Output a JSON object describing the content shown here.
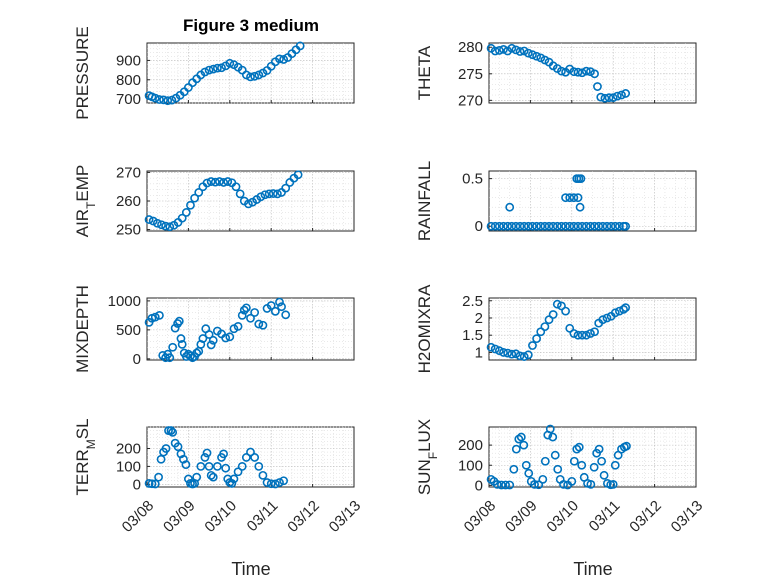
{
  "figure_title": "Figure 3 medium",
  "marker_color": "#0072BD",
  "chart_data": [
    {
      "type": "scatter",
      "title": "Figure 3 medium",
      "ylabel": "PRESSURE",
      "ylim": [
        680,
        990
      ],
      "yticks": [
        700,
        800,
        900
      ],
      "xlim": [
        0,
        5
      ],
      "points": [
        [
          0.05,
          718
        ],
        [
          0.12,
          712
        ],
        [
          0.2,
          705
        ],
        [
          0.3,
          698
        ],
        [
          0.4,
          696
        ],
        [
          0.5,
          692
        ],
        [
          0.6,
          695
        ],
        [
          0.7,
          705
        ],
        [
          0.8,
          720
        ],
        [
          0.9,
          738
        ],
        [
          1.0,
          760
        ],
        [
          1.1,
          785
        ],
        [
          1.2,
          805
        ],
        [
          1.3,
          825
        ],
        [
          1.4,
          840
        ],
        [
          1.5,
          850
        ],
        [
          1.6,
          855
        ],
        [
          1.7,
          860
        ],
        [
          1.8,
          862
        ],
        [
          1.9,
          872
        ],
        [
          2.0,
          885
        ],
        [
          2.1,
          878
        ],
        [
          2.2,
          865
        ],
        [
          2.3,
          850
        ],
        [
          2.4,
          825
        ],
        [
          2.5,
          815
        ],
        [
          2.6,
          818
        ],
        [
          2.7,
          825
        ],
        [
          2.8,
          835
        ],
        [
          2.9,
          848
        ],
        [
          3.0,
          870
        ],
        [
          3.1,
          893
        ],
        [
          3.2,
          908
        ],
        [
          3.3,
          905
        ],
        [
          3.4,
          915
        ],
        [
          3.5,
          935
        ],
        [
          3.6,
          955
        ],
        [
          3.7,
          975
        ]
      ]
    },
    {
      "type": "scatter",
      "ylabel": "THETA",
      "ylim": [
        269.5,
        280.8
      ],
      "yticks": [
        270,
        275,
        280
      ],
      "xlim": [
        0,
        5
      ],
      "points": [
        [
          0.05,
          279.8
        ],
        [
          0.15,
          279.3
        ],
        [
          0.25,
          279.4
        ],
        [
          0.35,
          279.6
        ],
        [
          0.45,
          279.3
        ],
        [
          0.55,
          279.8
        ],
        [
          0.65,
          279.5
        ],
        [
          0.75,
          279.2
        ],
        [
          0.85,
          279.3
        ],
        [
          0.95,
          278.9
        ],
        [
          1.05,
          278.6
        ],
        [
          1.15,
          278.3
        ],
        [
          1.25,
          278.0
        ],
        [
          1.35,
          277.6
        ],
        [
          1.45,
          277.2
        ],
        [
          1.55,
          276.5
        ],
        [
          1.65,
          276.0
        ],
        [
          1.75,
          275.5
        ],
        [
          1.85,
          275.3
        ],
        [
          1.95,
          275.9
        ],
        [
          2.05,
          275.4
        ],
        [
          2.15,
          275.3
        ],
        [
          2.25,
          275.2
        ],
        [
          2.35,
          275.5
        ],
        [
          2.45,
          275.4
        ],
        [
          2.55,
          275.0
        ],
        [
          2.62,
          272.6
        ],
        [
          2.7,
          270.6
        ],
        [
          2.8,
          270.4
        ],
        [
          2.9,
          270.5
        ],
        [
          3.0,
          270.5
        ],
        [
          3.1,
          270.8
        ],
        [
          3.2,
          271.0
        ],
        [
          3.3,
          271.3
        ]
      ]
    },
    {
      "type": "scatter",
      "ylabel": "AIR_TEMP",
      "ylim": [
        249.5,
        270.5
      ],
      "yticks": [
        250,
        260,
        270
      ],
      "xlim": [
        0,
        5
      ],
      "points": [
        [
          0.05,
          253.5
        ],
        [
          0.15,
          253.0
        ],
        [
          0.25,
          252.2
        ],
        [
          0.35,
          251.7
        ],
        [
          0.45,
          251.2
        ],
        [
          0.55,
          251.0
        ],
        [
          0.65,
          251.5
        ],
        [
          0.75,
          252.5
        ],
        [
          0.85,
          254.0
        ],
        [
          0.95,
          256.0
        ],
        [
          1.05,
          258.5
        ],
        [
          1.15,
          261.0
        ],
        [
          1.25,
          263.0
        ],
        [
          1.35,
          265.0
        ],
        [
          1.45,
          266.3
        ],
        [
          1.55,
          266.8
        ],
        [
          1.65,
          266.6
        ],
        [
          1.75,
          266.8
        ],
        [
          1.85,
          266.5
        ],
        [
          1.95,
          266.8
        ],
        [
          2.05,
          266.4
        ],
        [
          2.15,
          265.0
        ],
        [
          2.25,
          262.5
        ],
        [
          2.35,
          260.0
        ],
        [
          2.45,
          259.0
        ],
        [
          2.55,
          259.6
        ],
        [
          2.65,
          260.5
        ],
        [
          2.75,
          261.5
        ],
        [
          2.85,
          262.2
        ],
        [
          2.95,
          262.5
        ],
        [
          3.05,
          262.6
        ],
        [
          3.15,
          262.5
        ],
        [
          3.25,
          263.0
        ],
        [
          3.35,
          264.5
        ],
        [
          3.45,
          266.5
        ],
        [
          3.55,
          268.0
        ],
        [
          3.65,
          269.2
        ]
      ]
    },
    {
      "type": "scatter",
      "ylabel": "RAINFALL",
      "ylim": [
        -0.05,
        0.58
      ],
      "yticks": [
        0,
        0.5
      ],
      "xlim": [
        0,
        5
      ],
      "points": [
        [
          0.05,
          0
        ],
        [
          0.15,
          0
        ],
        [
          0.25,
          0
        ],
        [
          0.35,
          0
        ],
        [
          0.45,
          0
        ],
        [
          0.55,
          0
        ],
        [
          0.65,
          0
        ],
        [
          0.75,
          0
        ],
        [
          0.85,
          0
        ],
        [
          0.95,
          0
        ],
        [
          1.05,
          0
        ],
        [
          1.15,
          0
        ],
        [
          1.25,
          0
        ],
        [
          1.35,
          0
        ],
        [
          1.45,
          0
        ],
        [
          1.55,
          0
        ],
        [
          1.65,
          0
        ],
        [
          1.75,
          0
        ],
        [
          1.85,
          0
        ],
        [
          1.95,
          0
        ],
        [
          2.05,
          0
        ],
        [
          2.15,
          0
        ],
        [
          2.25,
          0
        ],
        [
          2.35,
          0
        ],
        [
          2.45,
          0
        ],
        [
          2.55,
          0
        ],
        [
          2.65,
          0
        ],
        [
          2.75,
          0
        ],
        [
          2.85,
          0
        ],
        [
          2.95,
          0
        ],
        [
          3.05,
          0
        ],
        [
          3.15,
          0
        ],
        [
          3.25,
          0
        ],
        [
          3.3,
          0
        ],
        [
          0.5,
          0.2
        ],
        [
          1.85,
          0.3
        ],
        [
          1.95,
          0.3
        ],
        [
          2.05,
          0.3
        ],
        [
          2.12,
          0.5
        ],
        [
          2.17,
          0.5
        ],
        [
          2.22,
          0.5
        ],
        [
          2.15,
          0.3
        ],
        [
          2.2,
          0.2
        ]
      ]
    },
    {
      "type": "scatter",
      "ylabel": "MIXDEPTH",
      "ylim": [
        -20,
        1050
      ],
      "yticks": [
        0,
        500,
        1000
      ],
      "xlim": [
        0,
        5
      ],
      "points": [
        [
          0.05,
          630
        ],
        [
          0.12,
          700
        ],
        [
          0.2,
          720
        ],
        [
          0.3,
          750
        ],
        [
          0.38,
          60
        ],
        [
          0.45,
          20
        ],
        [
          0.5,
          80
        ],
        [
          0.55,
          20
        ],
        [
          0.62,
          200
        ],
        [
          0.68,
          530
        ],
        [
          0.74,
          610
        ],
        [
          0.78,
          650
        ],
        [
          0.82,
          350
        ],
        [
          0.85,
          250
        ],
        [
          0.9,
          100
        ],
        [
          0.95,
          40
        ],
        [
          1.0,
          80
        ],
        [
          1.05,
          50
        ],
        [
          1.1,
          20
        ],
        [
          1.15,
          40
        ],
        [
          1.2,
          100
        ],
        [
          1.25,
          130
        ],
        [
          1.3,
          250
        ],
        [
          1.35,
          350
        ],
        [
          1.42,
          520
        ],
        [
          1.5,
          420
        ],
        [
          1.55,
          240
        ],
        [
          1.6,
          320
        ],
        [
          1.7,
          480
        ],
        [
          1.8,
          430
        ],
        [
          1.9,
          360
        ],
        [
          2.0,
          380
        ],
        [
          2.1,
          520
        ],
        [
          2.2,
          560
        ],
        [
          2.3,
          750
        ],
        [
          2.35,
          840
        ],
        [
          2.4,
          880
        ],
        [
          2.5,
          700
        ],
        [
          2.6,
          800
        ],
        [
          2.7,
          600
        ],
        [
          2.8,
          580
        ],
        [
          2.9,
          870
        ],
        [
          3.0,
          920
        ],
        [
          3.1,
          820
        ],
        [
          3.2,
          980
        ],
        [
          3.25,
          900
        ],
        [
          3.35,
          760
        ]
      ]
    },
    {
      "type": "scatter",
      "ylabel": "H2OMIXRA",
      "ylim": [
        0.78,
        2.58
      ],
      "yticks": [
        1,
        1.5,
        2,
        2.5
      ],
      "xlim": [
        0,
        5
      ],
      "points": [
        [
          0.05,
          1.15
        ],
        [
          0.15,
          1.1
        ],
        [
          0.25,
          1.05
        ],
        [
          0.35,
          1.0
        ],
        [
          0.45,
          0.98
        ],
        [
          0.55,
          0.95
        ],
        [
          0.65,
          0.96
        ],
        [
          0.75,
          0.9
        ],
        [
          0.85,
          0.88
        ],
        [
          0.95,
          0.93
        ],
        [
          1.05,
          1.2
        ],
        [
          1.15,
          1.4
        ],
        [
          1.25,
          1.6
        ],
        [
          1.35,
          1.75
        ],
        [
          1.45,
          1.95
        ],
        [
          1.55,
          2.1
        ],
        [
          1.65,
          2.4
        ],
        [
          1.75,
          2.35
        ],
        [
          1.85,
          2.2
        ],
        [
          1.95,
          1.7
        ],
        [
          2.05,
          1.55
        ],
        [
          2.15,
          1.5
        ],
        [
          2.25,
          1.5
        ],
        [
          2.35,
          1.5
        ],
        [
          2.45,
          1.55
        ],
        [
          2.55,
          1.6
        ],
        [
          2.65,
          1.85
        ],
        [
          2.75,
          1.95
        ],
        [
          2.85,
          2.0
        ],
        [
          2.95,
          2.05
        ],
        [
          3.05,
          2.15
        ],
        [
          3.15,
          2.2
        ],
        [
          3.25,
          2.25
        ],
        [
          3.3,
          2.3
        ]
      ]
    },
    {
      "type": "scatter",
      "ylabel": "TERR_MSL",
      "ylim": [
        -15,
        320
      ],
      "yticks": [
        0,
        100,
        200
      ],
      "xlim": [
        0,
        5
      ],
      "points": [
        [
          0.05,
          5
        ],
        [
          0.12,
          3
        ],
        [
          0.2,
          2
        ],
        [
          0.28,
          40
        ],
        [
          0.34,
          140
        ],
        [
          0.4,
          180
        ],
        [
          0.46,
          200
        ],
        [
          0.52,
          300
        ],
        [
          0.58,
          300
        ],
        [
          0.62,
          290
        ],
        [
          0.68,
          230
        ],
        [
          0.75,
          210
        ],
        [
          0.82,
          170
        ],
        [
          0.88,
          140
        ],
        [
          0.94,
          110
        ],
        [
          1.0,
          30
        ],
        [
          1.05,
          5
        ],
        [
          1.1,
          2
        ],
        [
          1.15,
          5
        ],
        [
          1.2,
          40
        ],
        [
          1.3,
          100
        ],
        [
          1.4,
          150
        ],
        [
          1.45,
          175
        ],
        [
          1.5,
          100
        ],
        [
          1.55,
          50
        ],
        [
          1.6,
          40
        ],
        [
          1.7,
          100
        ],
        [
          1.8,
          150
        ],
        [
          1.85,
          170
        ],
        [
          1.9,
          90
        ],
        [
          1.95,
          30
        ],
        [
          2.0,
          10
        ],
        [
          2.05,
          5
        ],
        [
          2.1,
          30
        ],
        [
          2.2,
          70
        ],
        [
          2.3,
          100
        ],
        [
          2.4,
          150
        ],
        [
          2.5,
          180
        ],
        [
          2.6,
          150
        ],
        [
          2.7,
          100
        ],
        [
          2.8,
          50
        ],
        [
          2.9,
          10
        ],
        [
          3.0,
          3
        ],
        [
          3.1,
          2
        ],
        [
          3.2,
          10
        ],
        [
          3.3,
          20
        ]
      ]
    },
    {
      "type": "scatter",
      "ylabel": "SUN_FLUX",
      "ylim": [
        -8,
        290
      ],
      "yticks": [
        0,
        100,
        200
      ],
      "xlim": [
        0,
        5
      ],
      "points": [
        [
          0.05,
          30
        ],
        [
          0.12,
          20
        ],
        [
          0.2,
          5
        ],
        [
          0.3,
          2
        ],
        [
          0.4,
          2
        ],
        [
          0.5,
          2
        ],
        [
          0.6,
          80
        ],
        [
          0.66,
          180
        ],
        [
          0.72,
          230
        ],
        [
          0.78,
          240
        ],
        [
          0.84,
          200
        ],
        [
          0.9,
          100
        ],
        [
          0.96,
          60
        ],
        [
          1.02,
          20
        ],
        [
          1.1,
          5
        ],
        [
          1.2,
          3
        ],
        [
          1.3,
          30
        ],
        [
          1.36,
          120
        ],
        [
          1.42,
          250
        ],
        [
          1.48,
          280
        ],
        [
          1.54,
          240
        ],
        [
          1.6,
          150
        ],
        [
          1.66,
          80
        ],
        [
          1.72,
          30
        ],
        [
          1.8,
          5
        ],
        [
          1.9,
          2
        ],
        [
          2.0,
          20
        ],
        [
          2.06,
          120
        ],
        [
          2.12,
          180
        ],
        [
          2.18,
          190
        ],
        [
          2.24,
          100
        ],
        [
          2.3,
          40
        ],
        [
          2.38,
          10
        ],
        [
          2.46,
          5
        ],
        [
          2.54,
          90
        ],
        [
          2.6,
          160
        ],
        [
          2.66,
          180
        ],
        [
          2.72,
          120
        ],
        [
          2.78,
          50
        ],
        [
          2.86,
          10
        ],
        [
          2.94,
          3
        ],
        [
          3.0,
          5
        ],
        [
          3.05,
          100
        ],
        [
          3.12,
          150
        ],
        [
          3.2,
          180
        ],
        [
          3.27,
          190
        ],
        [
          3.32,
          195
        ]
      ]
    }
  ],
  "xticklabels": [
    "03/08",
    "03/09",
    "03/10",
    "03/11",
    "03/12",
    "03/13"
  ],
  "xlabel": "Time"
}
